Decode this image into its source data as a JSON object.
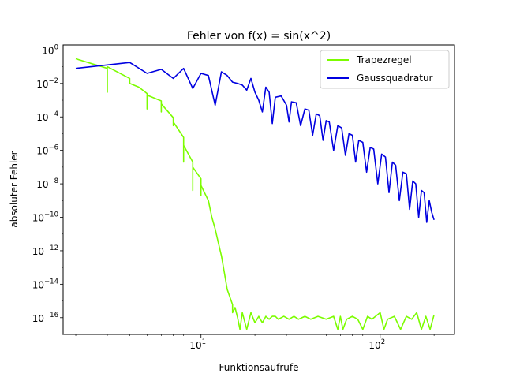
{
  "chart_data": {
    "type": "line",
    "title": "Fehler von f(x) = sin(x^2)",
    "xlabel": "Funktionsaufrufe",
    "ylabel": "absoluter Fehler",
    "xscale": "log",
    "yscale": "log",
    "xlim": [
      1.7,
      260
    ],
    "ylim": [
      1e-17,
      2
    ],
    "grid": false,
    "legend_position": "top-right",
    "x_ticks": [
      {
        "base": "10",
        "exp": "1",
        "value": 10
      },
      {
        "base": "10",
        "exp": "2",
        "value": 100
      }
    ],
    "y_ticks": [
      {
        "base": "10",
        "exp": "0",
        "value": 1
      },
      {
        "base": "10",
        "exp": "−2",
        "value": 0.01
      },
      {
        "base": "10",
        "exp": "−4",
        "value": 0.0001
      },
      {
        "base": "10",
        "exp": "−6",
        "value": 1e-06
      },
      {
        "base": "10",
        "exp": "−8",
        "value": 1e-08
      },
      {
        "base": "10",
        "exp": "−10",
        "value": 1e-10
      },
      {
        "base": "10",
        "exp": "−12",
        "value": 1e-12
      },
      {
        "base": "10",
        "exp": "−14",
        "value": 1e-14
      },
      {
        "base": "10",
        "exp": "−16",
        "value": 1e-16
      }
    ],
    "series": [
      {
        "name": "Trapezregel",
        "color": "#7cfc00",
        "points": [
          [
            2,
            0.3
          ],
          [
            3,
            0.08
          ],
          [
            3,
            0.003
          ],
          [
            3,
            0.1
          ],
          [
            4,
            0.02
          ],
          [
            4,
            0.01
          ],
          [
            4.5,
            0.006
          ],
          [
            5,
            0.0025
          ],
          [
            5,
            0.0003
          ],
          [
            5,
            0.002
          ],
          [
            6,
            0.0009
          ],
          [
            6,
            0.0002
          ],
          [
            6,
            0.0006
          ],
          [
            7,
            9e-05
          ],
          [
            7,
            3e-05
          ],
          [
            7,
            5e-05
          ],
          [
            8,
            6e-06
          ],
          [
            8,
            2e-07
          ],
          [
            8,
            2e-06
          ],
          [
            9,
            2e-07
          ],
          [
            9,
            4e-09
          ],
          [
            9,
            1e-07
          ],
          [
            10,
            2e-08
          ],
          [
            10,
            2e-09
          ],
          [
            10,
            8e-09
          ],
          [
            11,
            1e-09
          ],
          [
            11.5,
            1e-10
          ],
          [
            12,
            2e-11
          ],
          [
            12.5,
            3e-12
          ],
          [
            13,
            5e-13
          ],
          [
            13.5,
            5e-14
          ],
          [
            14,
            5e-15
          ],
          [
            15,
            6e-16
          ],
          [
            15,
            2e-16
          ],
          [
            15.5,
            4e-16
          ],
          [
            16,
            1e-16
          ],
          [
            16.5,
            2e-17
          ],
          [
            17,
            2e-16
          ],
          [
            18,
            2e-17
          ],
          [
            19,
            2e-16
          ],
          [
            20,
            5e-17
          ],
          [
            21,
            1.2e-16
          ],
          [
            22,
            5e-17
          ],
          [
            23,
            1.2e-16
          ],
          [
            24,
            8e-17
          ],
          [
            25,
            1.2e-16
          ],
          [
            26,
            1.2e-16
          ],
          [
            27,
            8e-17
          ],
          [
            29,
            1.2e-16
          ],
          [
            31,
            8e-17
          ],
          [
            33,
            1.2e-16
          ],
          [
            35,
            8e-17
          ],
          [
            38,
            1.2e-16
          ],
          [
            41,
            8e-17
          ],
          [
            45,
            1.2e-16
          ],
          [
            50,
            8e-17
          ],
          [
            55,
            1.2e-16
          ],
          [
            58,
            2e-17
          ],
          [
            60,
            1.2e-16
          ],
          [
            62,
            2e-17
          ],
          [
            65,
            8e-17
          ],
          [
            70,
            1.2e-16
          ],
          [
            75,
            8e-17
          ],
          [
            80,
            2e-17
          ],
          [
            85,
            1.2e-16
          ],
          [
            90,
            8e-17
          ],
          [
            100,
            2e-16
          ],
          [
            105,
            2e-17
          ],
          [
            110,
            8e-17
          ],
          [
            120,
            1.2e-16
          ],
          [
            130,
            2e-17
          ],
          [
            140,
            1.2e-16
          ],
          [
            150,
            8e-17
          ],
          [
            160,
            2e-16
          ],
          [
            170,
            2e-17
          ],
          [
            180,
            1.2e-16
          ],
          [
            190,
            2e-17
          ],
          [
            200,
            1.5e-16
          ]
        ]
      },
      {
        "name": "Gaussquadratur",
        "color": "#0000e0",
        "points": [
          [
            2,
            0.08
          ],
          [
            4,
            0.18
          ],
          [
            5,
            0.04
          ],
          [
            6,
            0.07
          ],
          [
            7,
            0.02
          ],
          [
            8,
            0.08
          ],
          [
            9,
            0.005
          ],
          [
            10,
            0.04
          ],
          [
            11,
            0.03
          ],
          [
            12,
            0.0005
          ],
          [
            13,
            0.05
          ],
          [
            14,
            0.03
          ],
          [
            15,
            0.012
          ],
          [
            16,
            0.01
          ],
          [
            17,
            0.008
          ],
          [
            18,
            0.004
          ],
          [
            19,
            0.02
          ],
          [
            20,
            0.003
          ],
          [
            21,
            0.001
          ],
          [
            22,
            0.0002
          ],
          [
            23,
            0.006
          ],
          [
            24,
            0.003
          ],
          [
            25,
            4e-05
          ],
          [
            26,
            0.0015
          ],
          [
            28,
            0.0018
          ],
          [
            30,
            0.0005
          ],
          [
            31,
            5e-05
          ],
          [
            32,
            0.0008
          ],
          [
            34,
            0.0007
          ],
          [
            36,
            3e-05
          ],
          [
            38,
            0.0003
          ],
          [
            40,
            0.00025
          ],
          [
            42,
            8e-06
          ],
          [
            44,
            0.00015
          ],
          [
            46,
            0.00012
          ],
          [
            48,
            4e-06
          ],
          [
            50,
            6e-05
          ],
          [
            52,
            5e-05
          ],
          [
            55,
            1e-06
          ],
          [
            58,
            3e-05
          ],
          [
            61,
            2.2e-05
          ],
          [
            64,
            5e-07
          ],
          [
            67,
            1e-05
          ],
          [
            70,
            8e-06
          ],
          [
            73,
            2e-07
          ],
          [
            76,
            4e-06
          ],
          [
            80,
            3e-06
          ],
          [
            84,
            5e-08
          ],
          [
            88,
            1.5e-06
          ],
          [
            92,
            1.2e-06
          ],
          [
            97,
            1e-08
          ],
          [
            102,
            6e-07
          ],
          [
            107,
            4e-07
          ],
          [
            112,
            3e-09
          ],
          [
            117,
            2e-07
          ],
          [
            122,
            1.3e-07
          ],
          [
            128,
            1e-09
          ],
          [
            134,
            5e-08
          ],
          [
            140,
            4e-08
          ],
          [
            146,
            3e-10
          ],
          [
            152,
            1.5e-08
          ],
          [
            158,
            1e-08
          ],
          [
            164,
            1e-10
          ],
          [
            170,
            4e-09
          ],
          [
            176,
            3e-09
          ],
          [
            182,
            5e-11
          ],
          [
            188,
            1e-09
          ],
          [
            194,
            2e-10
          ],
          [
            200,
            7e-11
          ]
        ]
      }
    ]
  }
}
